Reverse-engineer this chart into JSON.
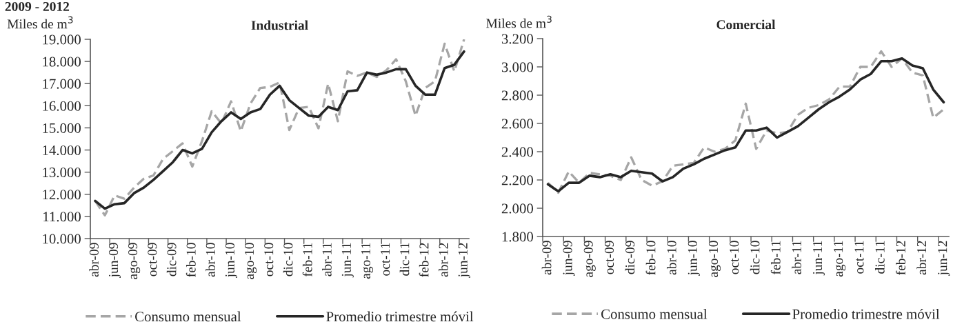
{
  "chart_data": [
    {
      "type": "line",
      "title": "Industrial",
      "ylabel": "Miles de m$^{3}$",
      "annotations": [
        "2009 - 2012"
      ],
      "categories": [
        "abr-09",
        null,
        "jun-09",
        null,
        "ago-09",
        null,
        "oct-09",
        null,
        "dic-09",
        null,
        "feb-10",
        null,
        "abr-10",
        null,
        "jun-10",
        null,
        "ago-10",
        null,
        "oct-10",
        null,
        "dic-10",
        null,
        "feb-11",
        null,
        "abr-11",
        null,
        "jun-11",
        null,
        "ago-11",
        null,
        "oct-11",
        null,
        "dic-11",
        null,
        "feb-12",
        null,
        "abr-12",
        null,
        "jun-12"
      ],
      "ylim": [
        10000,
        19000
      ],
      "yticks": [
        {
          "value": 10000,
          "label": "10.000"
        },
        {
          "value": 11000,
          "label": "11.000"
        },
        {
          "value": 12000,
          "label": "12.000"
        },
        {
          "value": 13000,
          "label": "13.000"
        },
        {
          "value": 14000,
          "label": "14.000"
        },
        {
          "value": 15000,
          "label": "15.000"
        },
        {
          "value": 16000,
          "label": "16.000"
        },
        {
          "value": 17000,
          "label": "17.000"
        },
        {
          "value": 18000,
          "label": "18.000"
        },
        {
          "value": 19000,
          "label": "19.000"
        }
      ],
      "legend": "bottom",
      "grid": false,
      "series": [
        {
          "name": "Consumo mensual",
          "color": "#a6a6a6",
          "line_style": "dashed",
          "values": [
            11700,
            11050,
            11950,
            11800,
            12300,
            12700,
            12850,
            13600,
            13950,
            14300,
            13250,
            14400,
            15750,
            15200,
            16200,
            14850,
            16100,
            16800,
            16850,
            17050,
            14900,
            15900,
            15950,
            14980,
            17000,
            15300,
            17550,
            17350,
            17500,
            17300,
            17600,
            18100,
            17100,
            15550,
            16800,
            17100,
            18800,
            17550,
            19000
          ]
        },
        {
          "name": "Promedio trimestre móvil",
          "color": "#262626",
          "line_style": "solid",
          "values": [
            11700,
            11350,
            11550,
            11600,
            12050,
            12300,
            12650,
            13050,
            13450,
            14000,
            13850,
            14050,
            14800,
            15300,
            15700,
            15400,
            15700,
            15850,
            16500,
            16900,
            16250,
            15900,
            15550,
            15500,
            15950,
            15800,
            16650,
            16700,
            17500,
            17400,
            17500,
            17650,
            17650,
            16900,
            16500,
            16500,
            17700,
            17850,
            18450
          ]
        }
      ]
    },
    {
      "type": "line",
      "title": "Comercial",
      "ylabel": "Miles de m$^{3}$",
      "categories": [
        "abr-09",
        null,
        "jun-09",
        null,
        "ago-09",
        null,
        "oct-09",
        null,
        "dic-09",
        null,
        "feb-10",
        null,
        "abr-10",
        null,
        "jun-10",
        null,
        "ago-10",
        null,
        "oct-10",
        null,
        "dic-10",
        null,
        "feb-11",
        null,
        "abr-11",
        null,
        "jun-11",
        null,
        "ago-11",
        null,
        "oct-11",
        null,
        "dic-11",
        null,
        "feb-12",
        null,
        "abr-12",
        null,
        "jun-12"
      ],
      "ylim": [
        1800,
        3200
      ],
      "yticks": [
        {
          "value": 1800,
          "label": "1.800"
        },
        {
          "value": 2000,
          "label": "2.000"
        },
        {
          "value": 2200,
          "label": "2.200"
        },
        {
          "value": 2400,
          "label": "2.400"
        },
        {
          "value": 2600,
          "label": "2.600"
        },
        {
          "value": 2800,
          "label": "2.800"
        },
        {
          "value": 3000,
          "label": "3.000"
        },
        {
          "value": 3200,
          "label": "3.200"
        }
      ],
      "legend": "bottom",
      "grid": false,
      "series": [
        {
          "name": "Consumo mensual",
          "color": "#a6a6a6",
          "line_style": "dashed",
          "values": [
            2180,
            2110,
            2260,
            2180,
            2250,
            2240,
            2230,
            2200,
            2360,
            2200,
            2160,
            2190,
            2300,
            2310,
            2320,
            2430,
            2400,
            2420,
            2480,
            2740,
            2420,
            2550,
            2530,
            2540,
            2660,
            2710,
            2730,
            2770,
            2860,
            2860,
            3000,
            3000,
            3110,
            3000,
            3060,
            2960,
            2940,
            2640,
            2700
          ]
        },
        {
          "name": "Promedio trimestre móvil",
          "color": "#262626",
          "line_style": "solid",
          "values": [
            2170,
            2120,
            2180,
            2180,
            2230,
            2220,
            2240,
            2220,
            2265,
            2255,
            2245,
            2190,
            2220,
            2280,
            2310,
            2350,
            2380,
            2410,
            2430,
            2550,
            2550,
            2570,
            2500,
            2540,
            2580,
            2640,
            2700,
            2750,
            2790,
            2840,
            2910,
            2950,
            3040,
            3040,
            3060,
            3010,
            2990,
            2840,
            2750
          ]
        }
      ]
    }
  ]
}
